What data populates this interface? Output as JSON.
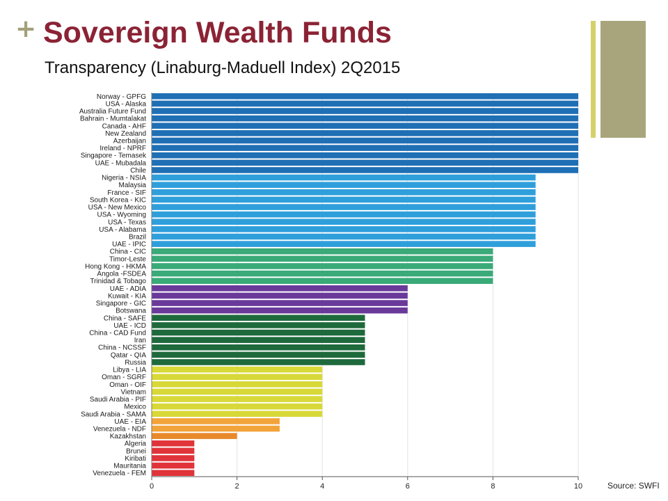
{
  "slide": {
    "plus_symbol": "+",
    "title": "Sovereign Wealth Funds",
    "subtitle": "Transparency (Linaburg-Maduell Index) 2Q2015",
    "source": "Source: SWFI"
  },
  "colors": {
    "title": "#8b2335",
    "accent": "#a8a57c",
    "accent_line": "#d5d16a"
  },
  "chart_data": {
    "type": "bar",
    "orientation": "horizontal",
    "title": "",
    "xlabel": "",
    "ylabel": "",
    "xlim": [
      0,
      10
    ],
    "x_ticks": [
      0,
      2,
      4,
      6,
      8,
      10
    ],
    "grid": true,
    "categories": [
      "Norway - GPFG",
      "USA - Alaska",
      "Australia Future Fund",
      "Bahrain - Mumtalakat",
      "Canada - AHF",
      "New Zealand",
      "Azerbaijan",
      "Ireland - NPRF",
      "Singapore - Temasek",
      "UAE - Mubadala",
      "Chile",
      "Nigeria - NSIA",
      "Malaysia",
      "France - SIF",
      "South Korea - KIC",
      "USA - New Mexico",
      "USA - Wyoming",
      "USA - Texas",
      "USA - Alabama",
      "Brazil",
      "UAE - IPIC",
      "China - CIC",
      "Timor-Leste",
      "Hong Kong - HKMA",
      "Angola -FSDEA",
      "Trinidad & Tobago",
      "UAE - ADIA",
      "Kuwait - KIA",
      "Singapore - GIC",
      "Botswana",
      "China - SAFE",
      "UAE - ICD",
      "China - CAD Fund",
      "Iran",
      "China - NCSSF",
      "Qatar - QIA",
      "Russia",
      "Libya - LIA",
      "Oman - SGRF",
      "Oman - OIF",
      "Vietnam",
      "Saudi Arabia - PIF",
      "Mexico",
      "Saudi Arabia - SAMA",
      "UAE - EIA",
      "Venezuela - NDF",
      "Kazakhstan",
      "Algeria",
      "Brunei",
      "Kiribati",
      "Mauritania",
      "Venezuela - FEM"
    ],
    "values": [
      10,
      10,
      10,
      10,
      10,
      10,
      10,
      10,
      10,
      10,
      10,
      9,
      9,
      9,
      9,
      9,
      9,
      9,
      9,
      9,
      9,
      8,
      8,
      8,
      8,
      8,
      6,
      6,
      6,
      6,
      5,
      5,
      5,
      5,
      5,
      5,
      5,
      4,
      4,
      4,
      4,
      4,
      4,
      4,
      3,
      3,
      2,
      1,
      1,
      1,
      1,
      1
    ],
    "value_colors": {
      "10": "#1f6fb5",
      "9": "#2f9fdc",
      "8": "#3aaa78",
      "6": "#6a3a9a",
      "5": "#1e6a3c",
      "4": "#d8d838",
      "3": "#f2a33a",
      "2": "#e8892a",
      "1": "#e0343a"
    }
  }
}
